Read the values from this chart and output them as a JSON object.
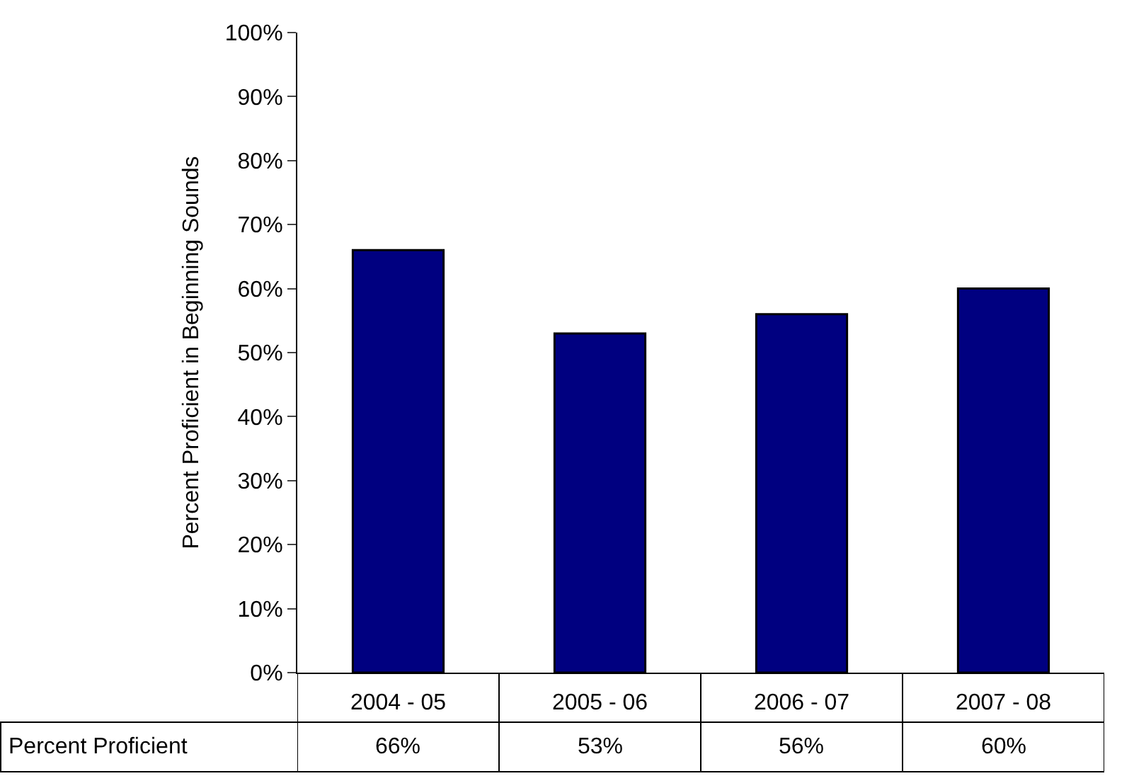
{
  "chart_data": {
    "type": "bar",
    "ylabel": "Percent Proficient in Beginning Sounds",
    "categories": [
      "2004 - 05",
      "2005 - 06",
      "2006 - 07",
      "2007 - 08"
    ],
    "series": [
      {
        "name": "Percent Proficient",
        "color": "#000080",
        "values": [
          66,
          53,
          56,
          60
        ],
        "value_labels": [
          "66%",
          "53%",
          "56%",
          "60%"
        ]
      }
    ],
    "ylim": [
      0,
      100
    ],
    "yticks": [
      {
        "value": 0,
        "label": "0%"
      },
      {
        "value": 10,
        "label": "10%"
      },
      {
        "value": 20,
        "label": "20%"
      },
      {
        "value": 30,
        "label": "30%"
      },
      {
        "value": 40,
        "label": "40%"
      },
      {
        "value": 50,
        "label": "50%"
      },
      {
        "value": 60,
        "label": "60%"
      },
      {
        "value": 70,
        "label": "70%"
      },
      {
        "value": 80,
        "label": "80%"
      },
      {
        "value": 90,
        "label": "90%"
      },
      {
        "value": 100,
        "label": "100%"
      }
    ],
    "legend": "bottom"
  }
}
